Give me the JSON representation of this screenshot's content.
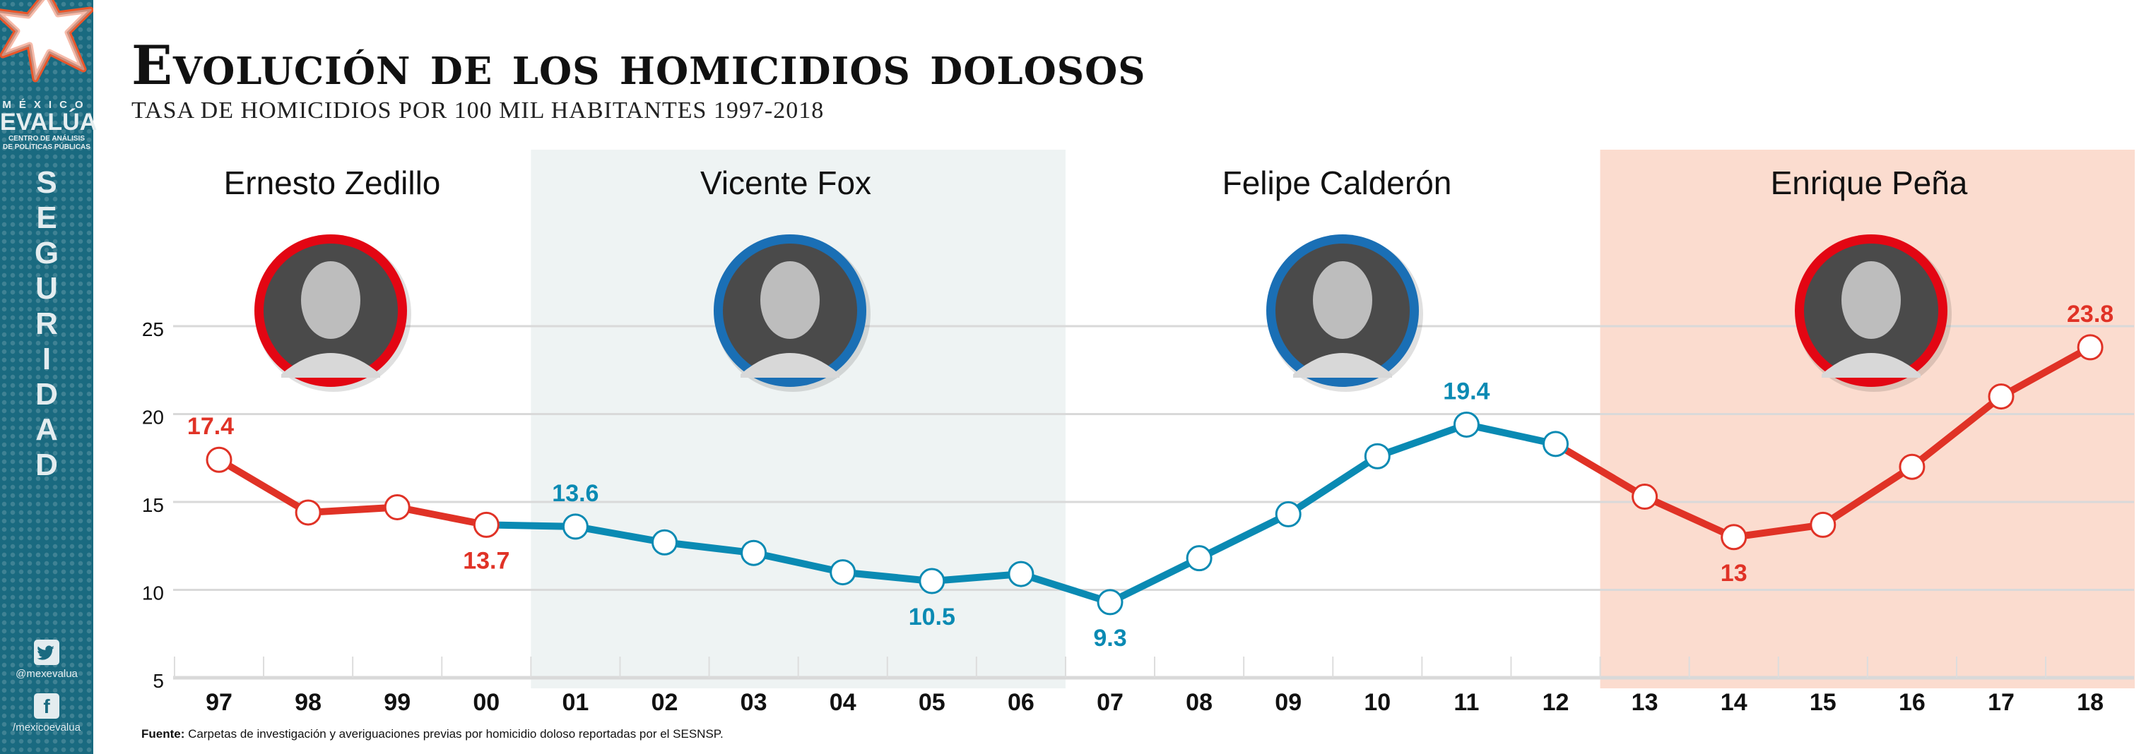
{
  "sidebar": {
    "brand_small": "MÉXICO",
    "brand_big": "EVALÚA",
    "brand_sub_1": "CENTRO DE ANÁLISIS",
    "brand_sub_2": "DE POLÍTICAS PÚBLICAS",
    "section_word": "SEGURIDAD",
    "social": [
      {
        "icon": "twitter-icon",
        "glyph": "🐦",
        "handle": "@mexevalua"
      },
      {
        "icon": "facebook-icon",
        "glyph": "f",
        "handle": "/mexicoevalua"
      }
    ]
  },
  "header": {
    "title": "Evolución de los homicidios dolosos",
    "subtitle": "TASA DE HOMICIDIOS POR 100 MIL HABITANTES 1997-2018"
  },
  "footer": {
    "source_label": "Fuente:",
    "source_text": " Carpetas de investigación y averiguaciones previas por homicidio doloso reportadas por el SESNSP."
  },
  "colors": {
    "red": "#e03226",
    "blue": "#0a8ab3",
    "ring_red": "#e30613",
    "ring_blue": "#1a6fb5",
    "fox_panel": "#eef3f3",
    "pena_panel": "#fbdccf",
    "grid": "#d9d9d9"
  },
  "chart_data": {
    "type": "line",
    "title": "Evolución de los homicidios dolosos",
    "subtitle": "TASA DE HOMICIDIOS POR 100 MIL HABITANTES 1997-2018",
    "xlabel": "",
    "ylabel": "",
    "ylim": [
      5,
      27
    ],
    "yticks": [
      5,
      10,
      15,
      20,
      25
    ],
    "grid": true,
    "categories": [
      "97",
      "98",
      "99",
      "00",
      "01",
      "02",
      "03",
      "04",
      "05",
      "06",
      "07",
      "08",
      "09",
      "10",
      "11",
      "12",
      "13",
      "14",
      "15",
      "16",
      "17",
      "18"
    ],
    "values": [
      17.4,
      14.4,
      14.7,
      13.7,
      13.6,
      12.7,
      12.1,
      11.0,
      10.5,
      10.9,
      9.3,
      11.8,
      14.3,
      17.6,
      19.4,
      18.3,
      15.3,
      13.0,
      13.7,
      17.0,
      21.0,
      23.8
    ],
    "terms": [
      {
        "name": "Ernesto Zedillo",
        "start": 0,
        "end": 3,
        "color": "red",
        "panel": "none",
        "ring": "ring_red"
      },
      {
        "name": "Vicente Fox",
        "start": 3,
        "end": 9,
        "color": "blue",
        "panel": "fox_panel",
        "ring": "ring_blue"
      },
      {
        "name": "Felipe Calderón",
        "start": 9,
        "end": 15,
        "color": "blue",
        "panel": "none",
        "ring": "ring_blue"
      },
      {
        "name": "Enrique Peña",
        "start": 15,
        "end": 21,
        "color": "red",
        "panel": "pena_panel",
        "ring": "ring_red"
      }
    ],
    "segment_colors": [
      "red",
      "red",
      "red",
      "blue",
      "blue",
      "blue",
      "blue",
      "blue",
      "blue",
      "blue",
      "blue",
      "blue",
      "blue",
      "blue",
      "blue",
      "red",
      "red",
      "red",
      "red",
      "red",
      "red"
    ],
    "data_labels": [
      {
        "index": 0,
        "text": "17.4",
        "position": "above",
        "color": "red"
      },
      {
        "index": 3,
        "text": "13.7",
        "position": "below",
        "color": "red"
      },
      {
        "index": 4,
        "text": "13.6",
        "position": "above",
        "color": "blue"
      },
      {
        "index": 8,
        "text": "10.5",
        "position": "below",
        "color": "blue"
      },
      {
        "index": 10,
        "text": "9.3",
        "position": "below",
        "color": "blue"
      },
      {
        "index": 14,
        "text": "19.4",
        "position": "above",
        "color": "blue"
      },
      {
        "index": 17,
        "text": "13",
        "position": "below",
        "color": "red"
      },
      {
        "index": 21,
        "text": "23.8",
        "position": "above",
        "color": "red"
      }
    ]
  }
}
